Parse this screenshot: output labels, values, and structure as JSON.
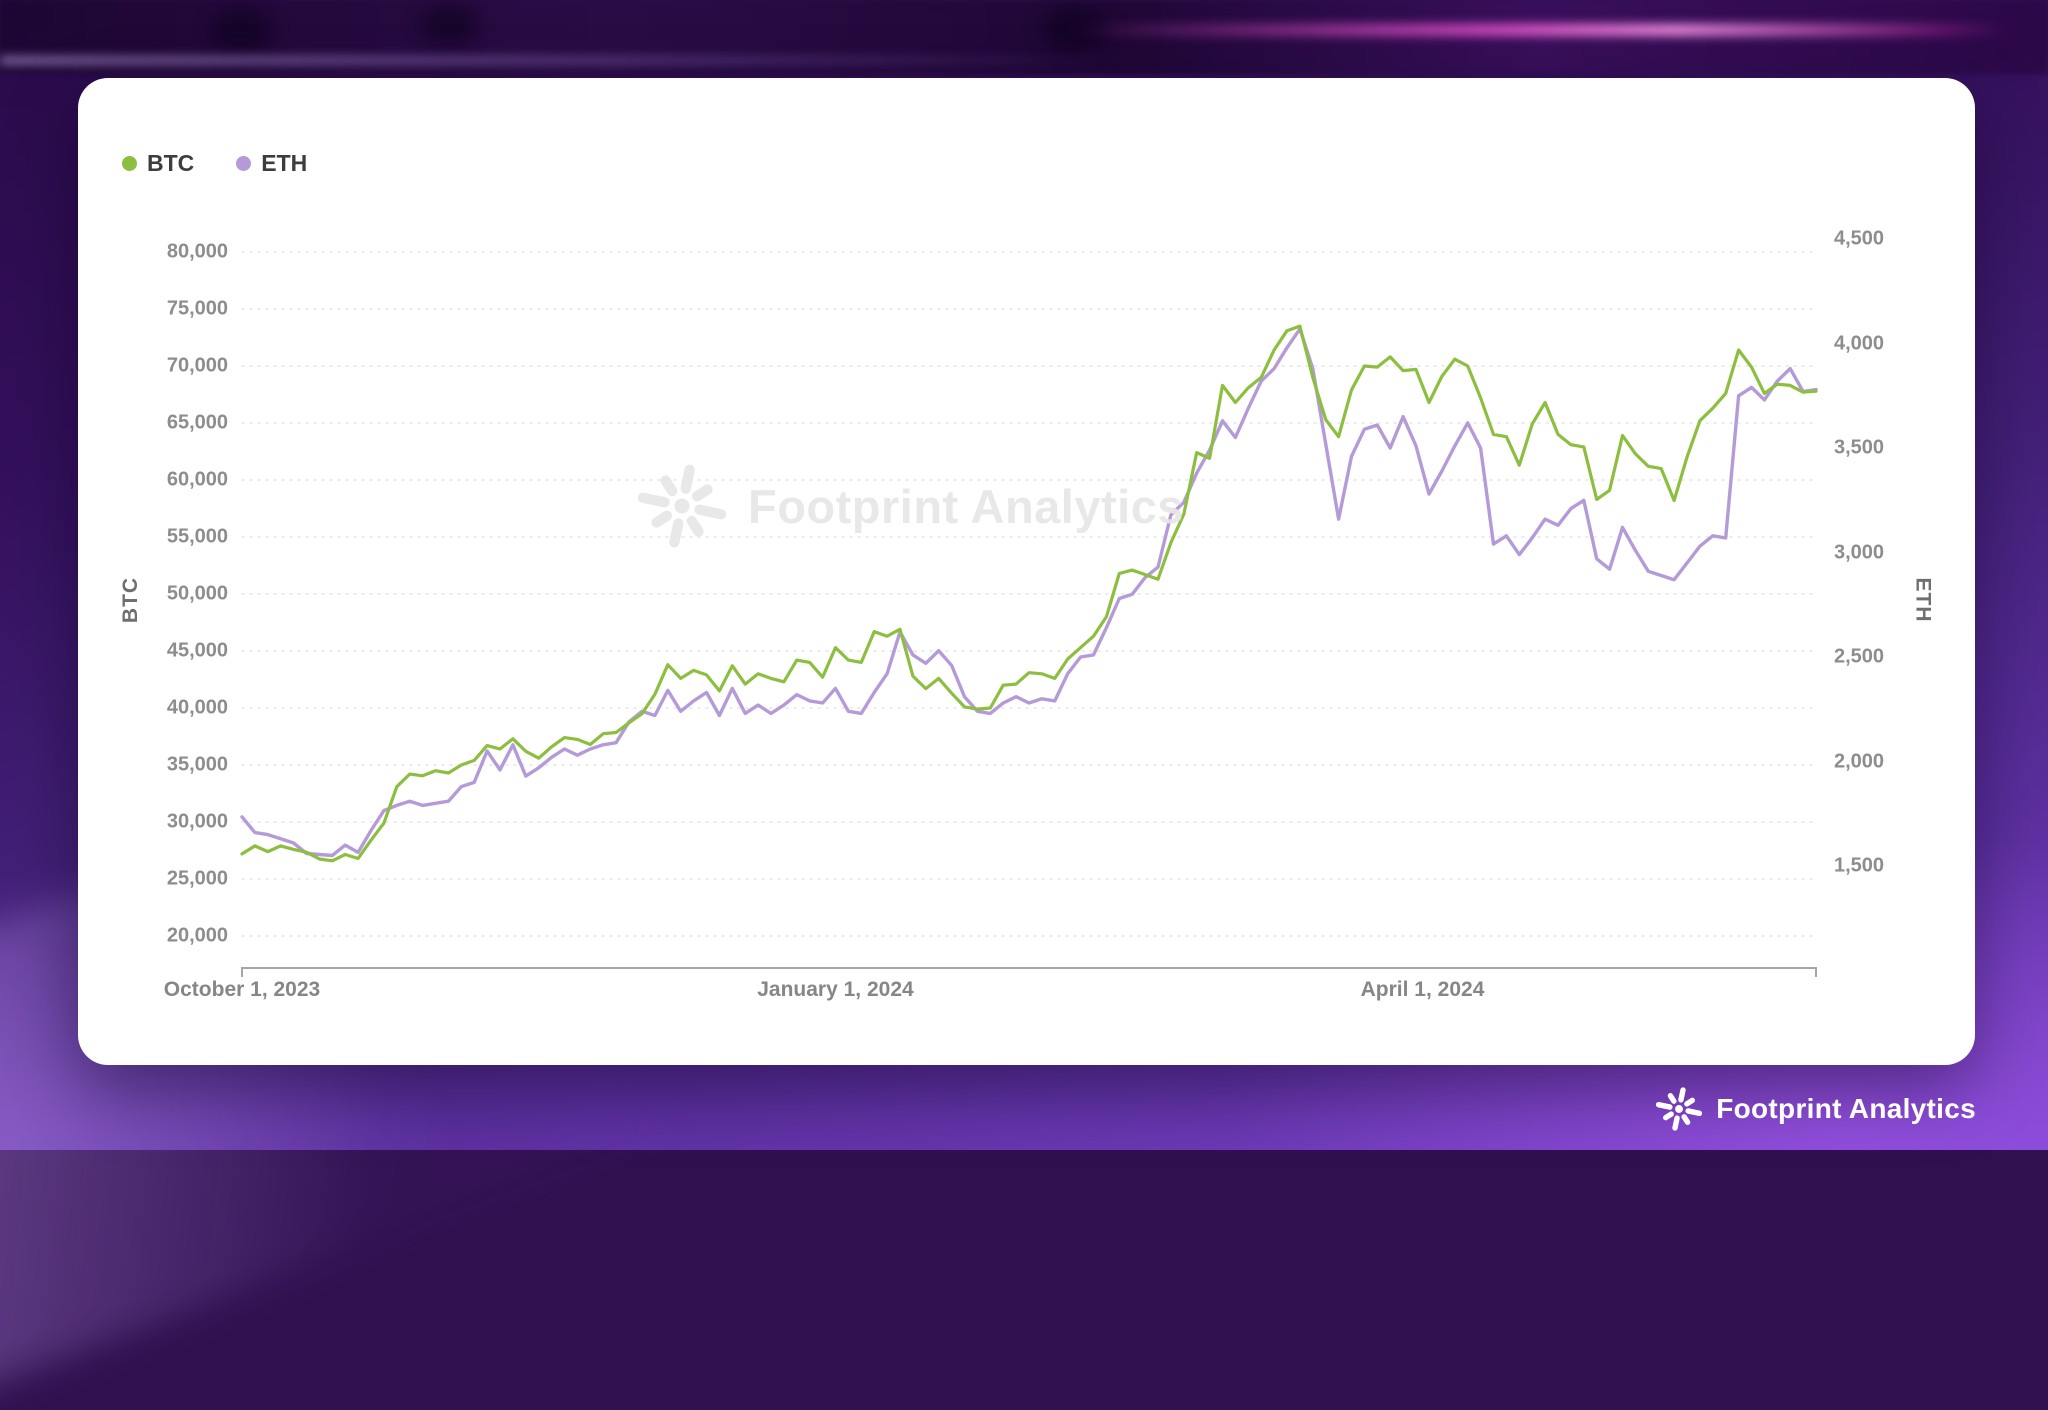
{
  "watermark": {
    "text": "Footprint Analytics",
    "icon": "footprint-flower-icon",
    "color": "#e7e7e7"
  },
  "footer": {
    "brand": "Footprint Analytics",
    "icon": "footprint-flower-icon",
    "color": "#ffffff"
  },
  "chart_data": {
    "type": "line",
    "grid": "horizontal-dotted",
    "title": "",
    "x_unit": "days since first visible date (daily prices)",
    "x_range": [
      0,
      244
    ],
    "legend": {
      "position": "top-left",
      "items": [
        {
          "label": "BTC",
          "color": "#8CBE3F"
        },
        {
          "label": "ETH",
          "color": "#B49BD8"
        }
      ]
    },
    "x_axis": {
      "labels": [
        {
          "text": "October 1, 2023",
          "day": 0
        },
        {
          "text": "January 1, 2024",
          "day": 92
        },
        {
          "text": "April 1, 2024",
          "day": 183
        }
      ]
    },
    "left_axis": {
      "title": "BTC",
      "min": 20000,
      "max": 80000,
      "tick_values": [
        80000,
        75000,
        70000,
        65000,
        60000,
        55000,
        50000,
        45000,
        40000,
        35000,
        30000,
        25000,
        20000
      ],
      "tick_labels": [
        "80,000",
        "75,000",
        "70,000",
        "65,000",
        "60,000",
        "55,000",
        "50,000",
        "45,000",
        "40,000",
        "35,000",
        "30,000",
        "25,000",
        "20,000"
      ]
    },
    "right_axis": {
      "title": "ETH",
      "min": 1500,
      "max": 4500,
      "tick_values": [
        4500,
        4000,
        3500,
        3000,
        2500,
        2000,
        1500
      ],
      "tick_labels": [
        "4,500",
        "4,000",
        "3,500",
        "3,000",
        "2,500",
        "2,000",
        "1,500"
      ]
    },
    "series": [
      {
        "name": "ETH",
        "axis": "right",
        "color": "#B49BD8",
        "width": 3.4,
        "points": [
          [
            0,
            1735
          ],
          [
            2,
            1660
          ],
          [
            4,
            1650
          ],
          [
            6,
            1630
          ],
          [
            8,
            1610
          ],
          [
            10,
            1560
          ],
          [
            12,
            1555
          ],
          [
            14,
            1550
          ],
          [
            16,
            1600
          ],
          [
            18,
            1565
          ],
          [
            20,
            1670
          ],
          [
            22,
            1765
          ],
          [
            24,
            1790
          ],
          [
            26,
            1810
          ],
          [
            28,
            1790
          ],
          [
            30,
            1800
          ],
          [
            32,
            1810
          ],
          [
            34,
            1880
          ],
          [
            36,
            1900
          ],
          [
            38,
            2050
          ],
          [
            40,
            1960
          ],
          [
            42,
            2080
          ],
          [
            44,
            1930
          ],
          [
            46,
            1970
          ],
          [
            48,
            2020
          ],
          [
            50,
            2060
          ],
          [
            52,
            2030
          ],
          [
            54,
            2060
          ],
          [
            56,
            2080
          ],
          [
            58,
            2090
          ],
          [
            60,
            2190
          ],
          [
            62,
            2240
          ],
          [
            64,
            2220
          ],
          [
            66,
            2340
          ],
          [
            68,
            2240
          ],
          [
            70,
            2290
          ],
          [
            72,
            2330
          ],
          [
            74,
            2220
          ],
          [
            76,
            2350
          ],
          [
            78,
            2230
          ],
          [
            80,
            2270
          ],
          [
            82,
            2230
          ],
          [
            84,
            2270
          ],
          [
            86,
            2320
          ],
          [
            88,
            2290
          ],
          [
            90,
            2280
          ],
          [
            92,
            2350
          ],
          [
            94,
            2240
          ],
          [
            96,
            2230
          ],
          [
            98,
            2330
          ],
          [
            100,
            2420
          ],
          [
            102,
            2620
          ],
          [
            104,
            2510
          ],
          [
            106,
            2470
          ],
          [
            108,
            2530
          ],
          [
            110,
            2460
          ],
          [
            112,
            2310
          ],
          [
            114,
            2240
          ],
          [
            116,
            2230
          ],
          [
            118,
            2280
          ],
          [
            120,
            2310
          ],
          [
            122,
            2280
          ],
          [
            124,
            2300
          ],
          [
            126,
            2290
          ],
          [
            128,
            2420
          ],
          [
            130,
            2500
          ],
          [
            132,
            2510
          ],
          [
            134,
            2640
          ],
          [
            136,
            2780
          ],
          [
            138,
            2800
          ],
          [
            140,
            2880
          ],
          [
            142,
            2930
          ],
          [
            144,
            3180
          ],
          [
            146,
            3240
          ],
          [
            148,
            3380
          ],
          [
            150,
            3490
          ],
          [
            152,
            3630
          ],
          [
            154,
            3550
          ],
          [
            156,
            3690
          ],
          [
            158,
            3820
          ],
          [
            160,
            3880
          ],
          [
            162,
            3980
          ],
          [
            164,
            4070
          ],
          [
            166,
            3880
          ],
          [
            168,
            3520
          ],
          [
            170,
            3160
          ],
          [
            172,
            3460
          ],
          [
            174,
            3590
          ],
          [
            176,
            3610
          ],
          [
            178,
            3500
          ],
          [
            180,
            3650
          ],
          [
            182,
            3510
          ],
          [
            184,
            3280
          ],
          [
            186,
            3390
          ],
          [
            188,
            3510
          ],
          [
            190,
            3620
          ],
          [
            192,
            3500
          ],
          [
            194,
            3040
          ],
          [
            196,
            3080
          ],
          [
            198,
            2990
          ],
          [
            200,
            3070
          ],
          [
            202,
            3160
          ],
          [
            204,
            3130
          ],
          [
            206,
            3210
          ],
          [
            208,
            3250
          ],
          [
            210,
            2970
          ],
          [
            212,
            2920
          ],
          [
            214,
            3120
          ],
          [
            216,
            3010
          ],
          [
            218,
            2910
          ],
          [
            220,
            2890
          ],
          [
            222,
            2870
          ],
          [
            224,
            2950
          ],
          [
            226,
            3030
          ],
          [
            228,
            3080
          ],
          [
            230,
            3070
          ],
          [
            232,
            3750
          ],
          [
            234,
            3790
          ],
          [
            236,
            3730
          ],
          [
            238,
            3820
          ],
          [
            240,
            3880
          ],
          [
            242,
            3770
          ],
          [
            244,
            3780
          ]
        ]
      },
      {
        "name": "BTC",
        "axis": "left",
        "color": "#8CBE3F",
        "width": 3.2,
        "points": [
          [
            0,
            27200
          ],
          [
            2,
            27900
          ],
          [
            4,
            27400
          ],
          [
            6,
            27900
          ],
          [
            8,
            27600
          ],
          [
            10,
            27350
          ],
          [
            12,
            26750
          ],
          [
            14,
            26600
          ],
          [
            16,
            27150
          ],
          [
            18,
            26800
          ],
          [
            20,
            28400
          ],
          [
            22,
            29900
          ],
          [
            24,
            33100
          ],
          [
            26,
            34200
          ],
          [
            28,
            34050
          ],
          [
            30,
            34500
          ],
          [
            32,
            34300
          ],
          [
            34,
            35000
          ],
          [
            36,
            35400
          ],
          [
            38,
            36700
          ],
          [
            40,
            36400
          ],
          [
            42,
            37300
          ],
          [
            44,
            36200
          ],
          [
            46,
            35600
          ],
          [
            48,
            36600
          ],
          [
            50,
            37400
          ],
          [
            52,
            37250
          ],
          [
            54,
            36800
          ],
          [
            56,
            37750
          ],
          [
            58,
            37850
          ],
          [
            60,
            38700
          ],
          [
            62,
            39500
          ],
          [
            64,
            41200
          ],
          [
            66,
            43800
          ],
          [
            68,
            42600
          ],
          [
            70,
            43300
          ],
          [
            72,
            42900
          ],
          [
            74,
            41500
          ],
          [
            76,
            43700
          ],
          [
            78,
            42100
          ],
          [
            80,
            43000
          ],
          [
            82,
            42600
          ],
          [
            84,
            42300
          ],
          [
            86,
            44200
          ],
          [
            88,
            44000
          ],
          [
            90,
            42700
          ],
          [
            92,
            45300
          ],
          [
            94,
            44200
          ],
          [
            96,
            44000
          ],
          [
            98,
            46700
          ],
          [
            100,
            46300
          ],
          [
            102,
            46900
          ],
          [
            104,
            42800
          ],
          [
            106,
            41700
          ],
          [
            108,
            42600
          ],
          [
            110,
            41300
          ],
          [
            112,
            40100
          ],
          [
            114,
            39900
          ],
          [
            116,
            40000
          ],
          [
            118,
            42000
          ],
          [
            120,
            42100
          ],
          [
            122,
            43100
          ],
          [
            124,
            43000
          ],
          [
            126,
            42600
          ],
          [
            128,
            44300
          ],
          [
            130,
            45300
          ],
          [
            132,
            46300
          ],
          [
            134,
            48000
          ],
          [
            136,
            51800
          ],
          [
            138,
            52100
          ],
          [
            140,
            51700
          ],
          [
            142,
            51300
          ],
          [
            144,
            54500
          ],
          [
            146,
            57000
          ],
          [
            148,
            62400
          ],
          [
            150,
            61900
          ],
          [
            152,
            68300
          ],
          [
            154,
            66800
          ],
          [
            156,
            68100
          ],
          [
            158,
            69000
          ],
          [
            160,
            71400
          ],
          [
            162,
            73100
          ],
          [
            164,
            73500
          ],
          [
            166,
            69000
          ],
          [
            168,
            65300
          ],
          [
            170,
            63800
          ],
          [
            172,
            67900
          ],
          [
            174,
            70000
          ],
          [
            176,
            69900
          ],
          [
            178,
            70800
          ],
          [
            180,
            69600
          ],
          [
            182,
            69700
          ],
          [
            184,
            66800
          ],
          [
            186,
            69100
          ],
          [
            188,
            70600
          ],
          [
            190,
            70000
          ],
          [
            192,
            67200
          ],
          [
            194,
            64000
          ],
          [
            196,
            63800
          ],
          [
            198,
            61300
          ],
          [
            200,
            64900
          ],
          [
            202,
            66800
          ],
          [
            204,
            64000
          ],
          [
            206,
            63100
          ],
          [
            208,
            62900
          ],
          [
            210,
            58300
          ],
          [
            212,
            59100
          ],
          [
            214,
            63900
          ],
          [
            216,
            62300
          ],
          [
            218,
            61200
          ],
          [
            220,
            61000
          ],
          [
            222,
            58200
          ],
          [
            224,
            62000
          ],
          [
            226,
            65200
          ],
          [
            228,
            66300
          ],
          [
            230,
            67600
          ],
          [
            232,
            71400
          ],
          [
            234,
            69900
          ],
          [
            236,
            67600
          ],
          [
            238,
            68400
          ],
          [
            240,
            68300
          ],
          [
            242,
            67700
          ],
          [
            244,
            67800
          ]
        ]
      }
    ]
  }
}
